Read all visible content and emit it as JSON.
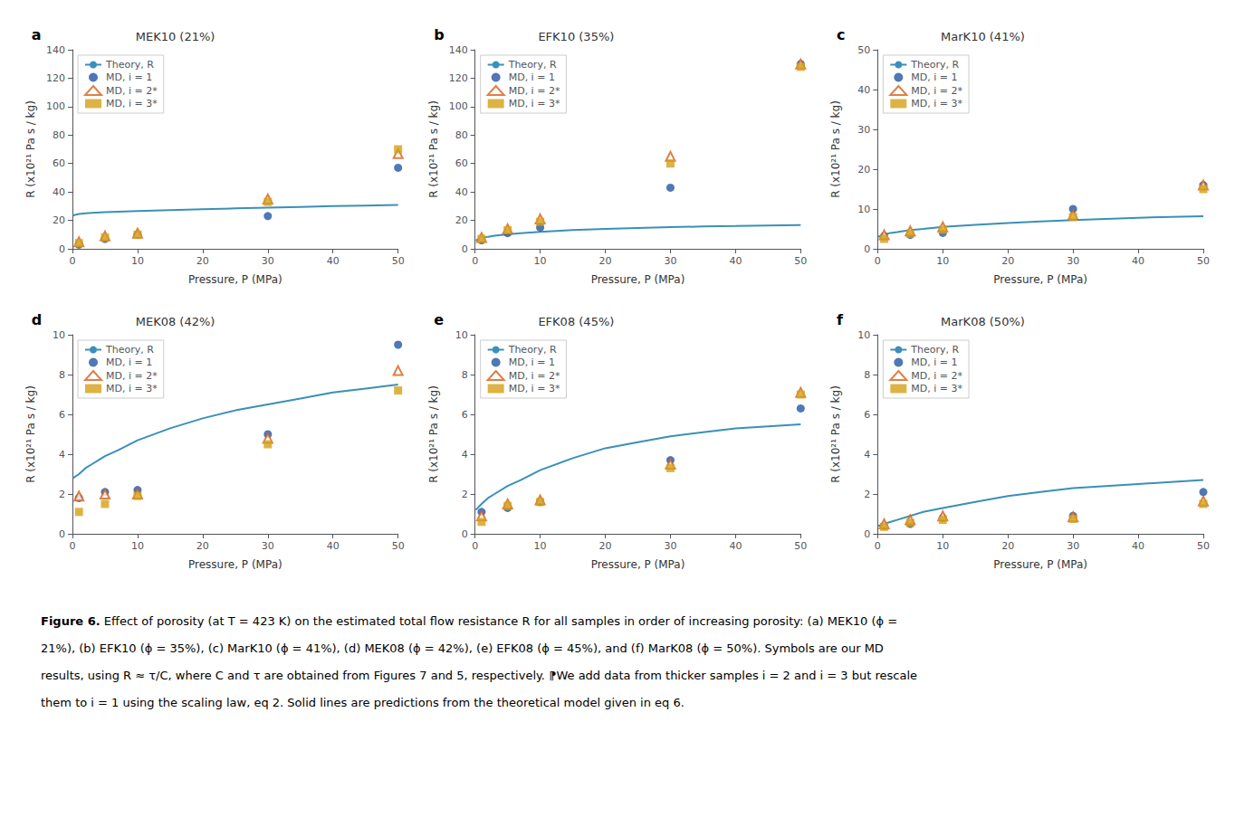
{
  "chart_data": [
    {
      "type": "scatter",
      "label": "a",
      "title": "MEK10 (21%)",
      "xlabel": "Pressure, P (MPa)",
      "ylabel": "R (x10²¹ Pa s / kg)",
      "xlim": [
        0,
        50
      ],
      "xticks": [
        0,
        10,
        20,
        30,
        40,
        50
      ],
      "ylim": [
        0,
        140
      ],
      "yticks": [
        0,
        20,
        40,
        60,
        80,
        100,
        120,
        140
      ],
      "grid": false,
      "legend": "upper left",
      "series": [
        {
          "name": "Theory, R",
          "type": "line",
          "color": "#3A90B8",
          "x": [
            0.1,
            1,
            2,
            3,
            5,
            7,
            10,
            15,
            20,
            25,
            30,
            35,
            40,
            45,
            50
          ],
          "values": [
            23.5,
            24.5,
            25.0,
            25.3,
            25.7,
            26.1,
            26.5,
            27.2,
            27.8,
            28.4,
            29.0,
            29.5,
            30.0,
            30.4,
            30.8
          ]
        },
        {
          "name": "MD, i = 1",
          "type": "scatter",
          "marker": "circle",
          "color": "#2455A4",
          "x": [
            1,
            5,
            10,
            30,
            50
          ],
          "values": [
            3,
            7,
            10,
            23,
            57
          ]
        },
        {
          "name": "MD, i = 2*",
          "type": "scatter",
          "marker": "open-triangle",
          "color": "#D4601A",
          "x": [
            1,
            5,
            10,
            30,
            50
          ],
          "values": [
            5,
            9,
            11,
            35,
            67
          ]
        },
        {
          "name": "MD, i = 3*",
          "type": "scatter",
          "marker": "square",
          "color": "#D4A017",
          "x": [
            1,
            5,
            10,
            30,
            50
          ],
          "values": [
            4,
            8,
            10,
            33,
            70
          ]
        }
      ]
    },
    {
      "type": "scatter",
      "label": "b",
      "title": "EFK10 (35%)",
      "xlabel": "Pressure, P (MPa)",
      "ylabel": "R (x10²¹ Pa s / kg)",
      "xlim": [
        0,
        50
      ],
      "xticks": [
        0,
        10,
        20,
        30,
        40,
        50
      ],
      "ylim": [
        0,
        140
      ],
      "yticks": [
        0,
        20,
        40,
        60,
        80,
        100,
        120,
        140
      ],
      "grid": false,
      "legend": "upper left",
      "series": [
        {
          "name": "Theory, R",
          "type": "line",
          "color": "#3A90B8",
          "x": [
            0.1,
            1,
            2,
            3,
            5,
            7,
            10,
            15,
            20,
            25,
            30,
            35,
            40,
            45,
            50
          ],
          "values": [
            6.0,
            7.5,
            8.5,
            9.2,
            10.2,
            11.0,
            12.0,
            13.2,
            14.0,
            14.6,
            15.2,
            15.7,
            16.0,
            16.4,
            16.7
          ]
        },
        {
          "name": "MD, i = 1",
          "type": "scatter",
          "marker": "circle",
          "color": "#2455A4",
          "x": [
            1,
            5,
            10,
            30,
            50
          ],
          "values": [
            6,
            11,
            15,
            43,
            130
          ]
        },
        {
          "name": "MD, i = 2*",
          "type": "scatter",
          "marker": "open-triangle",
          "color": "#D4601A",
          "x": [
            1,
            5,
            10,
            30,
            50
          ],
          "values": [
            8,
            14,
            21,
            65,
            130
          ]
        },
        {
          "name": "MD, i = 3*",
          "type": "scatter",
          "marker": "square",
          "color": "#D4A017",
          "x": [
            1,
            5,
            10,
            30,
            50
          ],
          "values": [
            7,
            13,
            19,
            60,
            128
          ]
        }
      ]
    },
    {
      "type": "scatter",
      "label": "c",
      "title": "MarK10 (41%)",
      "xlabel": "Pressure, P (MPa)",
      "ylabel": "R (x10²¹ Pa s / kg)",
      "xlim": [
        0,
        50
      ],
      "xticks": [
        0,
        10,
        20,
        30,
        40,
        50
      ],
      "ylim": [
        0,
        50
      ],
      "yticks": [
        0,
        10,
        20,
        30,
        40,
        50
      ],
      "grid": false,
      "legend": "upper left",
      "series": [
        {
          "name": "Theory, R",
          "type": "line",
          "color": "#3A90B8",
          "x": [
            0.1,
            1,
            2,
            3,
            5,
            7,
            10,
            15,
            20,
            25,
            30,
            35,
            40,
            45,
            50
          ],
          "values": [
            3.0,
            3.6,
            4.0,
            4.2,
            4.7,
            5.0,
            5.5,
            6.0,
            6.5,
            6.9,
            7.2,
            7.5,
            7.8,
            8.0,
            8.2
          ]
        },
        {
          "name": "MD, i = 1",
          "type": "scatter",
          "marker": "circle",
          "color": "#2455A4",
          "x": [
            1,
            5,
            10,
            30,
            50
          ],
          "values": [
            3.2,
            3.5,
            4.0,
            10,
            16
          ]
        },
        {
          "name": "MD, i = 2*",
          "type": "scatter",
          "marker": "open-triangle",
          "color": "#D4601A",
          "x": [
            1,
            5,
            10,
            30,
            50
          ],
          "values": [
            3.5,
            4.5,
            5.5,
            8.5,
            16
          ]
        },
        {
          "name": "MD, i = 3*",
          "type": "scatter",
          "marker": "square",
          "color": "#D4A017",
          "x": [
            1,
            5,
            10,
            30,
            50
          ],
          "values": [
            2.5,
            3.8,
            4.8,
            8.0,
            15
          ]
        }
      ]
    },
    {
      "type": "scatter",
      "label": "d",
      "title": "MEK08 (42%)",
      "xlabel": "Pressure, P (MPa)",
      "ylabel": "R (x10²¹ Pa s / kg)",
      "xlim": [
        0,
        50
      ],
      "xticks": [
        0,
        10,
        20,
        30,
        40,
        50
      ],
      "ylim": [
        0,
        10
      ],
      "yticks": [
        0,
        2,
        4,
        6,
        8,
        10
      ],
      "grid": false,
      "legend": "upper left",
      "series": [
        {
          "name": "Theory, R",
          "type": "line",
          "color": "#3A90B8",
          "x": [
            0.1,
            1,
            2,
            3,
            5,
            7,
            10,
            15,
            20,
            25,
            30,
            35,
            40,
            45,
            50
          ],
          "values": [
            2.8,
            3.0,
            3.3,
            3.5,
            3.9,
            4.2,
            4.7,
            5.3,
            5.8,
            6.2,
            6.5,
            6.8,
            7.1,
            7.3,
            7.5
          ]
        },
        {
          "name": "MD, i = 1",
          "type": "scatter",
          "marker": "circle",
          "color": "#2455A4",
          "x": [
            1,
            5,
            10,
            30,
            50
          ],
          "values": [
            1.8,
            2.1,
            2.2,
            5.0,
            9.5
          ]
        },
        {
          "name": "MD, i = 2*",
          "type": "scatter",
          "marker": "open-triangle",
          "color": "#D4601A",
          "x": [
            1,
            5,
            10,
            30,
            50
          ],
          "values": [
            1.9,
            2.0,
            2.0,
            4.8,
            8.2
          ]
        },
        {
          "name": "MD, i = 3*",
          "type": "scatter",
          "marker": "square",
          "color": "#D4A017",
          "x": [
            1,
            5,
            10,
            30,
            50
          ],
          "values": [
            1.1,
            1.5,
            1.9,
            4.5,
            7.2
          ]
        }
      ]
    },
    {
      "type": "scatter",
      "label": "e",
      "title": "EFK08 (45%)",
      "xlabel": "Pressure, P (MPa)",
      "ylabel": "R (x10²¹ Pa s / kg)",
      "xlim": [
        0,
        50
      ],
      "xticks": [
        0,
        10,
        20,
        30,
        40,
        50
      ],
      "ylim": [
        0,
        10
      ],
      "yticks": [
        0,
        2,
        4,
        6,
        8,
        10
      ],
      "grid": false,
      "legend": "upper left",
      "series": [
        {
          "name": "Theory, R",
          "type": "line",
          "color": "#3A90B8",
          "x": [
            0.1,
            1,
            2,
            3,
            5,
            7,
            10,
            15,
            20,
            25,
            30,
            35,
            40,
            45,
            50
          ],
          "values": [
            1.2,
            1.5,
            1.8,
            2.0,
            2.4,
            2.7,
            3.2,
            3.8,
            4.3,
            4.6,
            4.9,
            5.1,
            5.3,
            5.4,
            5.5
          ]
        },
        {
          "name": "MD, i = 1",
          "type": "scatter",
          "marker": "circle",
          "color": "#2455A4",
          "x": [
            1,
            5,
            10,
            30,
            50
          ],
          "values": [
            1.1,
            1.3,
            1.6,
            3.7,
            6.3
          ]
        },
        {
          "name": "MD, i = 2*",
          "type": "scatter",
          "marker": "open-triangle",
          "color": "#D4601A",
          "x": [
            1,
            5,
            10,
            30,
            50
          ],
          "values": [
            0.9,
            1.5,
            1.7,
            3.5,
            7.1
          ]
        },
        {
          "name": "MD, i = 3*",
          "type": "scatter",
          "marker": "square",
          "color": "#D4A017",
          "x": [
            1,
            5,
            10,
            30,
            50
          ],
          "values": [
            0.6,
            1.4,
            1.6,
            3.3,
            7.0
          ]
        }
      ]
    },
    {
      "type": "scatter",
      "label": "f",
      "title": "MarK08 (50%)",
      "xlabel": "Pressure, P (MPa)",
      "ylabel": "R (x10²¹ Pa s / kg)",
      "xlim": [
        0,
        50
      ],
      "xticks": [
        0,
        10,
        20,
        30,
        40,
        50
      ],
      "ylim": [
        0,
        10
      ],
      "yticks": [
        0,
        2,
        4,
        6,
        8,
        10
      ],
      "grid": false,
      "legend": "upper left",
      "series": [
        {
          "name": "Theory, R",
          "type": "line",
          "color": "#3A90B8",
          "x": [
            0.1,
            1,
            2,
            3,
            5,
            7,
            10,
            15,
            20,
            25,
            30,
            35,
            40,
            45,
            50
          ],
          "values": [
            0.4,
            0.5,
            0.6,
            0.7,
            0.9,
            1.1,
            1.3,
            1.6,
            1.9,
            2.1,
            2.3,
            2.4,
            2.5,
            2.6,
            2.7
          ]
        },
        {
          "name": "MD, i = 1",
          "type": "scatter",
          "marker": "circle",
          "color": "#2455A4",
          "x": [
            1,
            5,
            10,
            30,
            50
          ],
          "values": [
            0.4,
            0.5,
            0.8,
            0.9,
            2.1
          ]
        },
        {
          "name": "MD, i = 2*",
          "type": "scatter",
          "marker": "open-triangle",
          "color": "#D4601A",
          "x": [
            1,
            5,
            10,
            30,
            50
          ],
          "values": [
            0.5,
            0.7,
            0.9,
            0.85,
            1.65
          ]
        },
        {
          "name": "MD, i = 3*",
          "type": "scatter",
          "marker": "square",
          "color": "#D4A017",
          "x": [
            1,
            5,
            10,
            30,
            50
          ],
          "values": [
            0.35,
            0.55,
            0.7,
            0.75,
            1.5
          ]
        }
      ]
    }
  ],
  "caption": {
    "bold": "Figure 6.",
    "lines": [
      " Effect of porosity (at T = 423 K) on the estimated total flow resistance R for all samples in order of increasing porosity: (a) MEK10 (ϕ =",
      "21%), (b) EFK10 (ϕ = 35%), (c) MarK10 (ϕ = 41%), (d) MEK08 (ϕ = 42%), (e) EFK08 (ϕ = 45%), and (f) MarK08 (ϕ = 50%). Symbols are our MD",
      "results, using R ≈ τ/C, where C and τ are obtained from Figures 7 and 5, respectively. ⁋We add data from thicker samples i = 2 and i = 3 but rescale",
      "them to i = 1 using the scaling law, eq 2. Solid lines are predictions from the theoretical model given in eq 6."
    ]
  }
}
